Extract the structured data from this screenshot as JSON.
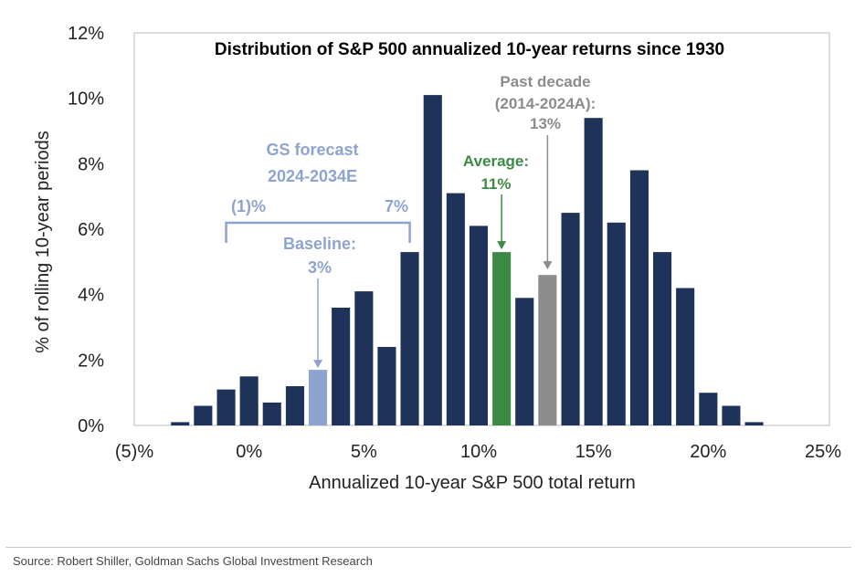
{
  "colors": {
    "bar": "#1f325a",
    "baseline": "#8ea4cf",
    "average": "#3d8a47",
    "past_decade": "#8c8c8c"
  },
  "chart_data": {
    "type": "bar",
    "title": "Distribution of S&P 500 annualized 10-year returns since 1930",
    "xlabel": "Annualized 10-year S&P 500 total return",
    "ylabel": "% of rolling 10-year periods",
    "xlim": [
      -5,
      25
    ],
    "ylim": [
      0,
      12
    ],
    "bin_width": 1,
    "x_tick_values": [
      -5,
      0,
      5,
      10,
      15,
      20,
      25
    ],
    "x_tick_labels": [
      "(5)%",
      "0%",
      "5%",
      "10%",
      "15%",
      "20%",
      "25%"
    ],
    "y_tick_values": [
      0,
      2,
      4,
      6,
      8,
      10,
      12
    ],
    "y_tick_labels": [
      "0%",
      "2%",
      "4%",
      "6%",
      "8%",
      "10%",
      "12%"
    ],
    "bars": [
      {
        "x": -3,
        "value": 0.1,
        "highlight": "none"
      },
      {
        "x": -2,
        "value": 0.6,
        "highlight": "none"
      },
      {
        "x": -1,
        "value": 1.1,
        "highlight": "none"
      },
      {
        "x": 0,
        "value": 1.5,
        "highlight": "none"
      },
      {
        "x": 1,
        "value": 0.7,
        "highlight": "none"
      },
      {
        "x": 2,
        "value": 1.2,
        "highlight": "none"
      },
      {
        "x": 3,
        "value": 1.7,
        "highlight": "baseline"
      },
      {
        "x": 4,
        "value": 3.6,
        "highlight": "none"
      },
      {
        "x": 5,
        "value": 4.1,
        "highlight": "none"
      },
      {
        "x": 6,
        "value": 2.4,
        "highlight": "none"
      },
      {
        "x": 7,
        "value": 5.3,
        "highlight": "none"
      },
      {
        "x": 8,
        "value": 10.1,
        "highlight": "none"
      },
      {
        "x": 9,
        "value": 7.1,
        "highlight": "none"
      },
      {
        "x": 10,
        "value": 6.1,
        "highlight": "none"
      },
      {
        "x": 11,
        "value": 5.3,
        "highlight": "average"
      },
      {
        "x": 12,
        "value": 3.9,
        "highlight": "none"
      },
      {
        "x": 13,
        "value": 4.6,
        "highlight": "past_decade"
      },
      {
        "x": 14,
        "value": 6.5,
        "highlight": "none"
      },
      {
        "x": 15,
        "value": 9.4,
        "highlight": "none"
      },
      {
        "x": 16,
        "value": 6.2,
        "highlight": "none"
      },
      {
        "x": 17,
        "value": 7.8,
        "highlight": "none"
      },
      {
        "x": 18,
        "value": 5.3,
        "highlight": "none"
      },
      {
        "x": 19,
        "value": 4.2,
        "highlight": "none"
      },
      {
        "x": 20,
        "value": 1.0,
        "highlight": "none"
      },
      {
        "x": 21,
        "value": 0.6,
        "highlight": "none"
      },
      {
        "x": 22,
        "value": 0.1,
        "highlight": "none"
      }
    ],
    "annotations": {
      "forecast_title_line1": "GS forecast",
      "forecast_title_line2": "2024-2034E",
      "range_low_label": "(1)%",
      "range_high_label": "7%",
      "range_low": -1,
      "range_high": 7,
      "baseline_line1": "Baseline:",
      "baseline_line2": "3%",
      "baseline_value": 3,
      "average_line1": "Average:",
      "average_line2": "11%",
      "average_value": 11,
      "past_line1": "Past decade",
      "past_line2": "(2014-2024A):",
      "past_line3": "13%",
      "past_value": 13
    }
  },
  "source": "Source: Robert Shiller, Goldman Sachs Global Investment Research"
}
